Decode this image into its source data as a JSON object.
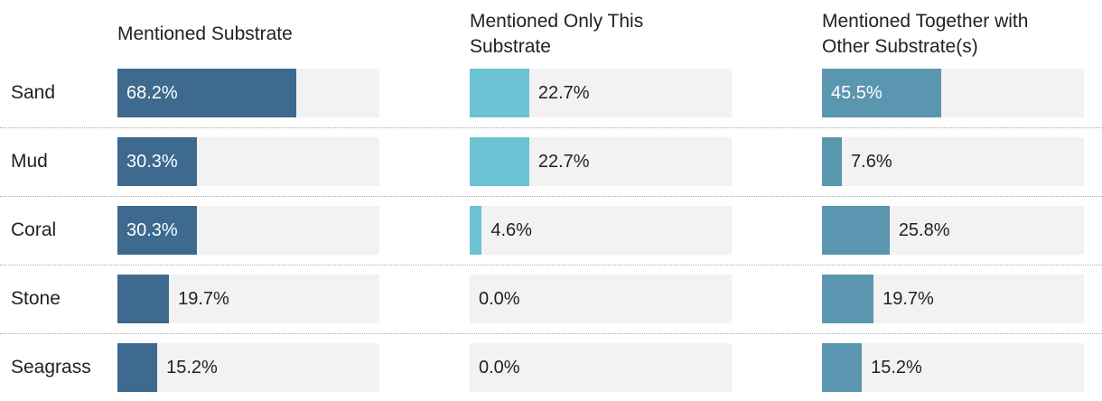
{
  "chart_data": {
    "type": "bar",
    "orientation": "horizontal",
    "categories": [
      "Sand",
      "Mud",
      "Coral",
      "Stone",
      "Seagrass"
    ],
    "xlim": [
      0,
      100
    ],
    "series": [
      {
        "name": "Mentioned Substrate",
        "color": "#3d6a8e",
        "values": [
          68.2,
          30.3,
          30.3,
          19.7,
          15.2
        ],
        "value_labels": [
          "68.2%",
          "30.3%",
          "30.3%",
          "19.7%",
          "15.2%"
        ]
      },
      {
        "name": "Mentioned Only This Substrate",
        "color": "#6cc3d3",
        "values": [
          22.7,
          22.7,
          4.6,
          0.0,
          0.0
        ],
        "value_labels": [
          "22.7%",
          "22.7%",
          "4.6%",
          "0.0%",
          "0.0%"
        ]
      },
      {
        "name": "Mentioned Together with Other Substrate(s)",
        "color": "#5b96b0",
        "values": [
          45.5,
          7.6,
          25.8,
          19.7,
          15.2
        ],
        "value_labels": [
          "45.5%",
          "7.6%",
          "25.8%",
          "19.7%",
          "15.2%"
        ]
      }
    ]
  }
}
